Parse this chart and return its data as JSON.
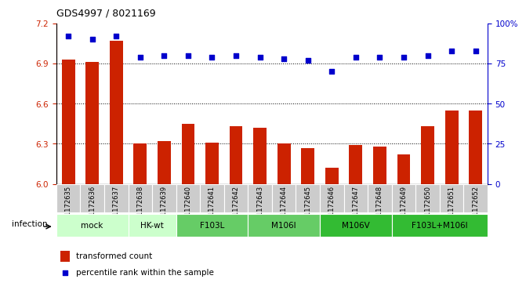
{
  "title": "GDS4997 / 8021169",
  "samples": [
    "GSM1172635",
    "GSM1172636",
    "GSM1172637",
    "GSM1172638",
    "GSM1172639",
    "GSM1172640",
    "GSM1172641",
    "GSM1172642",
    "GSM1172643",
    "GSM1172644",
    "GSM1172645",
    "GSM1172646",
    "GSM1172647",
    "GSM1172648",
    "GSM1172649",
    "GSM1172650",
    "GSM1172651",
    "GSM1172652"
  ],
  "bar_values": [
    6.93,
    6.91,
    7.07,
    6.3,
    6.32,
    6.45,
    6.31,
    6.43,
    6.42,
    6.3,
    6.27,
    6.12,
    6.29,
    6.28,
    6.22,
    6.43,
    6.55,
    6.55
  ],
  "percentile_values": [
    92,
    90,
    92,
    79,
    80,
    80,
    79,
    80,
    79,
    78,
    77,
    70,
    79,
    79,
    79,
    80,
    83,
    83
  ],
  "ylim_left": [
    6.0,
    7.2
  ],
  "ylim_right": [
    0,
    100
  ],
  "yticks_left": [
    6.0,
    6.3,
    6.6,
    6.9,
    7.2
  ],
  "yticks_right": [
    0,
    25,
    50,
    75,
    100
  ],
  "bar_color": "#cc2200",
  "dot_color": "#0000cc",
  "groups": [
    {
      "label": "mock",
      "start": 0,
      "end": 2,
      "color": "#ccffcc"
    },
    {
      "label": "HK-wt",
      "start": 3,
      "end": 4,
      "color": "#ccffcc"
    },
    {
      "label": "F103L",
      "start": 5,
      "end": 7,
      "color": "#66cc66"
    },
    {
      "label": "M106I",
      "start": 8,
      "end": 10,
      "color": "#66cc66"
    },
    {
      "label": "M106V",
      "start": 11,
      "end": 13,
      "color": "#33bb33"
    },
    {
      "label": "F103L+M106I",
      "start": 14,
      "end": 17,
      "color": "#33bb33"
    }
  ],
  "infection_label": "infection",
  "legend_bar_label": "transformed count",
  "legend_dot_label": "percentile rank within the sample",
  "sample_bg_color": "#cccccc",
  "tick_label_fontsize": 6,
  "bar_width": 0.55
}
